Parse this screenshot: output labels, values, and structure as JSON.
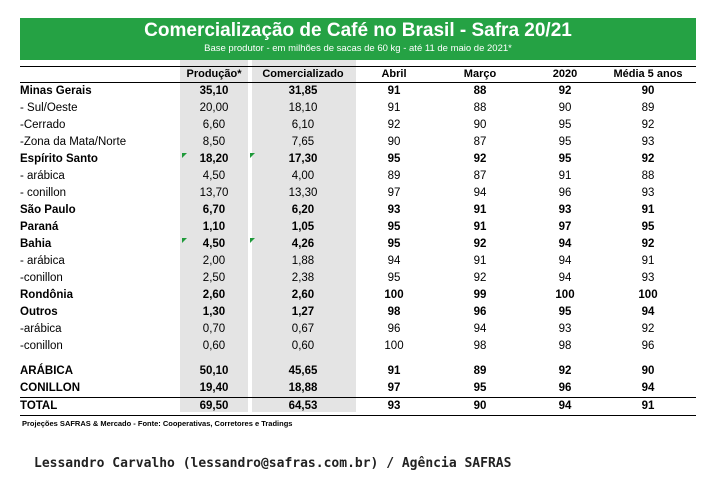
{
  "header": {
    "title": "Comercialização de Café no Brasil - Safra 20/21",
    "subtitle": "Base produtor - em milhões de sacas de 60 kg - até 11 de maio de 2021*"
  },
  "columns": [
    "",
    "Produção*",
    "Comercializado",
    "Abril",
    "Março",
    "2020",
    "Média 5 anos"
  ],
  "rows": [
    {
      "name": "Minas Gerais",
      "bold": true,
      "values": [
        "35,10",
        "31,85",
        "91",
        "88",
        "92",
        "90"
      ]
    },
    {
      "name": "- Sul/Oeste",
      "bold": false,
      "values": [
        "20,00",
        "18,10",
        "91",
        "88",
        "90",
        "89"
      ]
    },
    {
      "name": "-Cerrado",
      "bold": false,
      "values": [
        "6,60",
        "6,10",
        "92",
        "90",
        "95",
        "92"
      ]
    },
    {
      "name": "-Zona da Mata/Norte",
      "bold": false,
      "values": [
        "8,50",
        "7,65",
        "90",
        "87",
        "95",
        "93"
      ]
    },
    {
      "name": "Espírito Santo",
      "bold": true,
      "flag": true,
      "values": [
        "18,20",
        "17,30",
        "95",
        "92",
        "95",
        "92"
      ]
    },
    {
      "name": "- arábica",
      "bold": false,
      "values": [
        "4,50",
        "4,00",
        "89",
        "87",
        "91",
        "88"
      ]
    },
    {
      "name": "- conillon",
      "bold": false,
      "values": [
        "13,70",
        "13,30",
        "97",
        "94",
        "96",
        "93"
      ]
    },
    {
      "name": "São Paulo",
      "bold": true,
      "values": [
        "6,70",
        "6,20",
        "93",
        "91",
        "93",
        "91"
      ]
    },
    {
      "name": "Paraná",
      "bold": true,
      "values": [
        "1,10",
        "1,05",
        "95",
        "91",
        "97",
        "95"
      ]
    },
    {
      "name": "Bahia",
      "bold": true,
      "flag": true,
      "values": [
        "4,50",
        "4,26",
        "95",
        "92",
        "94",
        "92"
      ]
    },
    {
      "name": "- arábica",
      "bold": false,
      "values": [
        "2,00",
        "1,88",
        "94",
        "91",
        "94",
        "91"
      ]
    },
    {
      "name": "-conillon",
      "bold": false,
      "values": [
        "2,50",
        "2,38",
        "95",
        "92",
        "94",
        "93"
      ]
    },
    {
      "name": "Rondônia",
      "bold": true,
      "values": [
        "2,60",
        "2,60",
        "100",
        "99",
        "100",
        "100"
      ]
    },
    {
      "name": "Outros",
      "bold": true,
      "values": [
        "1,30",
        "1,27",
        "98",
        "96",
        "95",
        "94"
      ]
    },
    {
      "name": "-arábica",
      "bold": false,
      "values": [
        "0,70",
        "0,67",
        "96",
        "94",
        "93",
        "92"
      ]
    },
    {
      "name": "-conillon",
      "bold": false,
      "values": [
        "0,60",
        "0,60",
        "100",
        "98",
        "98",
        "96"
      ]
    }
  ],
  "summary": [
    {
      "name": "ARÁBICA",
      "values": [
        "50,10",
        "45,65",
        "91",
        "89",
        "92",
        "90"
      ]
    },
    {
      "name": "CONILLON",
      "values": [
        "19,40",
        "18,88",
        "97",
        "95",
        "96",
        "94"
      ]
    }
  ],
  "total": {
    "name": "TOTAL",
    "values": [
      "69,50",
      "64,53",
      "93",
      "90",
      "94",
      "91"
    ]
  },
  "footer": {
    "source": "Projeções SAFRAS & Mercado - Fonte: Cooperativas, Corretores e Tradings",
    "credit": "Lessandro Carvalho (lessandro@safras.com.br) / Agência SAFRAS"
  },
  "colors": {
    "banner": "#25a244",
    "shade": "#e4e4e4",
    "flag": "#1f9a3a"
  }
}
